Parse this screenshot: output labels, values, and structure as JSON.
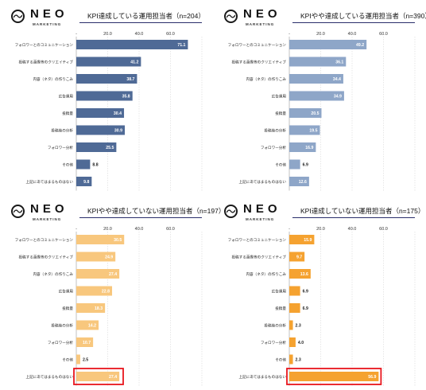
{
  "brand": {
    "word": "NEO",
    "sub": "MARKETING"
  },
  "chart_data": [
    {
      "type": "bar",
      "title": "KPI達成している運用担当者（n=204）",
      "axis_ticks": [
        "-",
        "20.0",
        "40.0",
        "60.0"
      ],
      "xlim": [
        0,
        80
      ],
      "color": "#4f6a96",
      "categories": [
        "フォロワーとのコミュニケーション",
        "投稿する画像等のクリエイティブ",
        "内容（ネタ）の作りこみ",
        "広告運用",
        "投稿量",
        "投稿後の分析",
        "フォロワー分析",
        "その他",
        "上記にあてはまるものはない"
      ],
      "values": [
        71.1,
        41.2,
        38.7,
        35.8,
        30.4,
        30.9,
        25.5,
        8.8,
        9.8
      ],
      "value_labels": [
        "71.1",
        "41.2",
        "38.7",
        "35.8",
        "30.4",
        "30.9",
        "25.5",
        "8.8",
        "9.8"
      ],
      "highlight_index": null
    },
    {
      "type": "bar",
      "title": "KPIやや達成している運用担当者（n=390）",
      "axis_ticks": [
        "-",
        "20.0",
        "40.0",
        "60.0"
      ],
      "xlim": [
        0,
        80
      ],
      "color": "#8ea6c8",
      "categories": [
        "フォロワーとのコミュニケーション",
        "投稿する画像等のクリエイティブ",
        "内容（ネタ）の作りこみ",
        "広告運用",
        "投稿量",
        "投稿後の分析",
        "フォロワー分析",
        "その他",
        "上記にあてはまるものはない"
      ],
      "values": [
        49.2,
        36.1,
        34.4,
        34.9,
        20.5,
        19.5,
        16.9,
        6.9,
        12.6
      ],
      "value_labels": [
        "49.2",
        "36.1",
        "34.4",
        "34.9",
        "20.5",
        "19.5",
        "16.9",
        "6.9",
        "12.6"
      ],
      "highlight_index": null
    },
    {
      "type": "bar",
      "title": "KPIやや達成していない運用担当者（n=197）",
      "axis_ticks": [
        "-",
        "20.0",
        "40.0",
        "60.0"
      ],
      "xlim": [
        0,
        80
      ],
      "color": "#f8c77d",
      "categories": [
        "フォロワーとのコミュニケーション",
        "投稿する画像等のクリエイティブ",
        "内容（ネタ）の作りこみ",
        "広告運用",
        "投稿量",
        "投稿後の分析",
        "フォロワー分析",
        "その他",
        "上記にあてはまるものはない"
      ],
      "values": [
        30.5,
        24.9,
        27.4,
        22.8,
        18.3,
        14.2,
        10.7,
        2.5,
        27.4
      ],
      "value_labels": [
        "30.5",
        "24.9",
        "27.4",
        "22.8",
        "18.3",
        "14.2",
        "10.7",
        "2.5",
        "27.4"
      ],
      "highlight_index": 8,
      "highlight_color": "#e8141c"
    },
    {
      "type": "bar",
      "title": "KPI達成していない運用担当者（n=175）",
      "axis_ticks": [
        "-",
        "20.0",
        "40.0",
        "60.0"
      ],
      "xlim": [
        0,
        80
      ],
      "color": "#f5a230",
      "categories": [
        "フォロワーとのコミュニケーション",
        "投稿する画像等のクリエイティブ",
        "内容（ネタ）の作りこみ",
        "広告運用",
        "投稿量",
        "投稿後の分析",
        "フォロワー分析",
        "その他",
        "上記にあてはまるものはない"
      ],
      "values": [
        15.9,
        9.7,
        13.6,
        6.9,
        6.9,
        2.3,
        4.0,
        2.3,
        56.9
      ],
      "value_labels": [
        "15.9",
        "9.7",
        "13.6",
        "6.9",
        "6.9",
        "2.3",
        "4.0",
        "2.3",
        "56.9"
      ],
      "highlight_index": 8,
      "highlight_color": "#e8141c"
    }
  ]
}
